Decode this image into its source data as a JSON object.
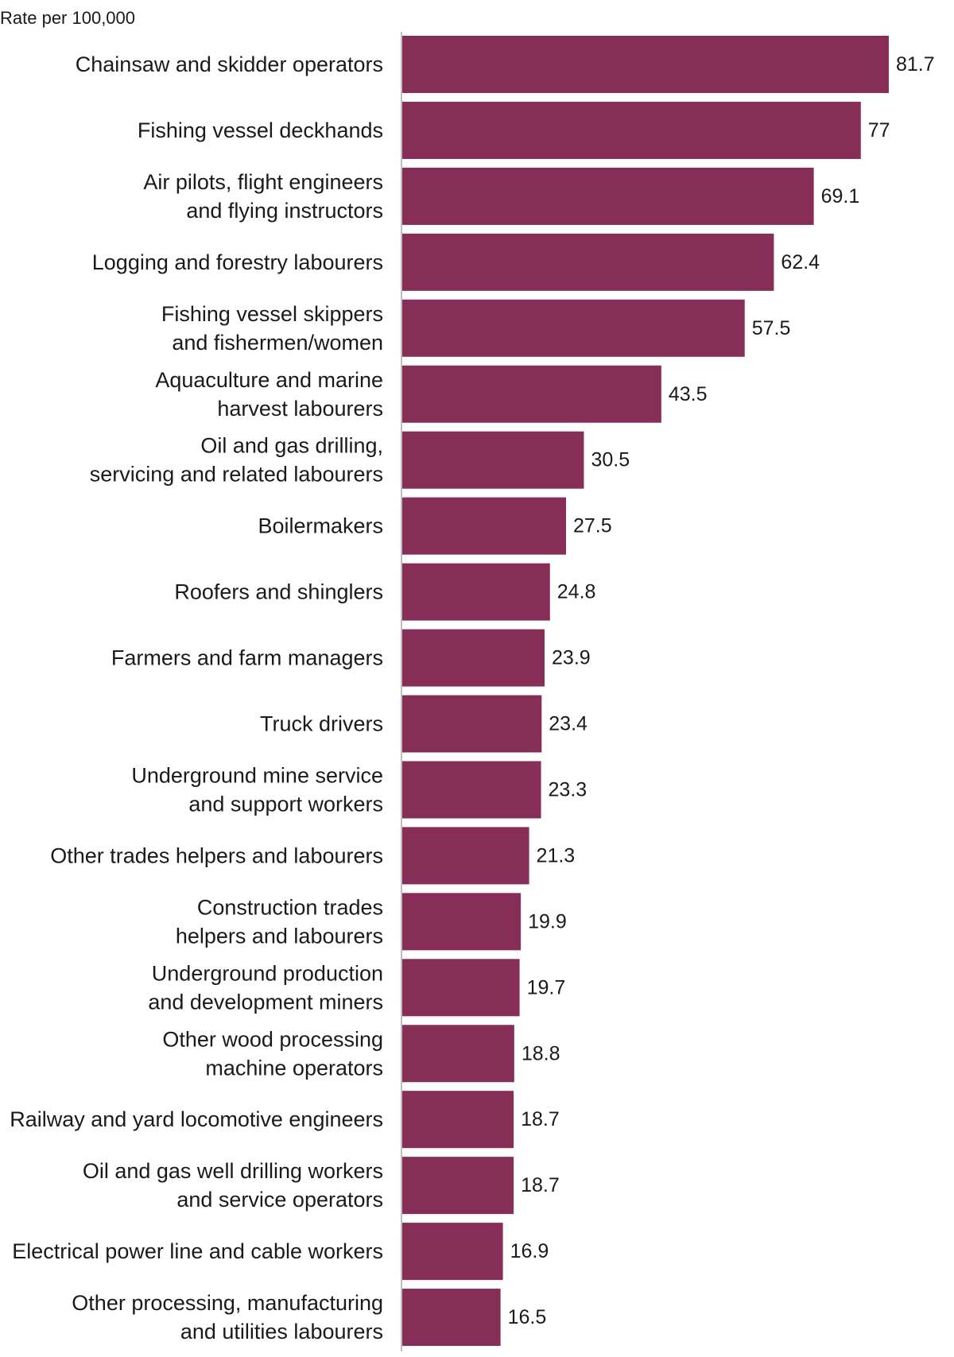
{
  "chart_data": {
    "type": "bar",
    "orientation": "horizontal",
    "ylabel": "Rate per 100,000",
    "bar_color": "#862d58",
    "axis_color": "#bdbdbd",
    "grid": false,
    "legend": "none",
    "categories": [
      [
        "Chainsaw and skidder operators"
      ],
      [
        "Fishing vessel deckhands"
      ],
      [
        "Air pilots, flight engineers",
        "and flying instructors"
      ],
      [
        "Logging and forestry labourers"
      ],
      [
        "Fishing vessel skippers",
        "and fishermen/women"
      ],
      [
        "Aquaculture and marine",
        "harvest labourers"
      ],
      [
        "Oil and gas drilling,",
        "servicing and related labourers"
      ],
      [
        "Boilermakers"
      ],
      [
        "Roofers and shinglers"
      ],
      [
        "Farmers and farm managers"
      ],
      [
        "Truck drivers"
      ],
      [
        "Underground mine service",
        "and support workers"
      ],
      [
        "Other trades helpers and labourers"
      ],
      [
        "Construction trades",
        "helpers and labourers"
      ],
      [
        "Underground production",
        "and development miners"
      ],
      [
        "Other wood processing",
        "machine operators"
      ],
      [
        "Railway and yard locomotive engineers"
      ],
      [
        "Oil and gas well drilling workers",
        "and service operators"
      ],
      [
        "Electrical power line and cable workers"
      ],
      [
        "Other processing, manufacturing",
        "and utilities labourers"
      ]
    ],
    "values": [
      81.7,
      77,
      69.1,
      62.4,
      57.5,
      43.5,
      30.5,
      27.5,
      24.8,
      23.9,
      23.4,
      23.3,
      21.3,
      19.9,
      19.7,
      18.8,
      18.7,
      18.7,
      16.9,
      16.5
    ],
    "value_labels": [
      "81.7",
      "77",
      "69.1",
      "62.4",
      "57.5",
      "43.5",
      "30.5",
      "27.5",
      "24.8",
      "23.9",
      "23.4",
      "23.3",
      "21.3",
      "19.9",
      "19.7",
      "18.8",
      "18.7",
      "18.7",
      "16.9",
      "16.5"
    ],
    "xlim": [
      0,
      81.7
    ]
  }
}
